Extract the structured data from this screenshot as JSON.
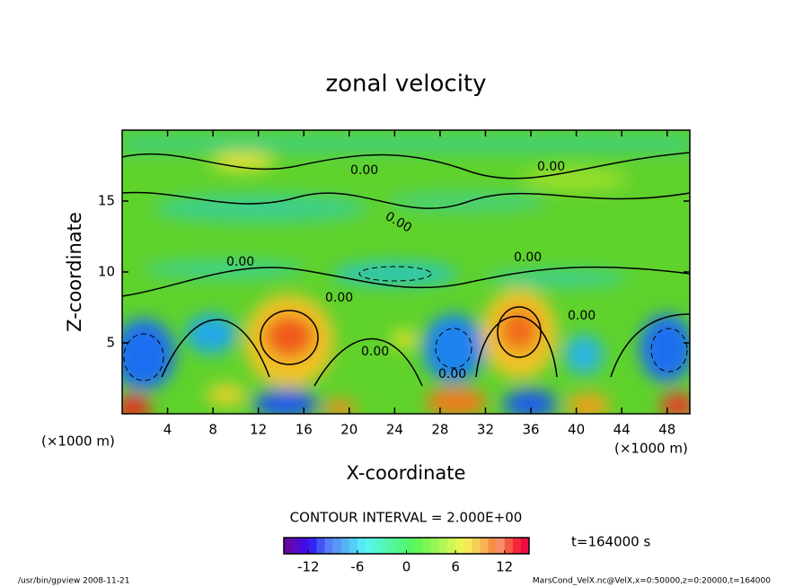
{
  "chart_data": {
    "type": "contour",
    "title": "zonal velocity",
    "xlabel": "X-coordinate",
    "ylabel": "Z-coordinate",
    "x_unit": "(×1000 m)",
    "y_unit": "(×1000 m)",
    "xlim": [
      0,
      50
    ],
    "ylim": [
      0,
      20
    ],
    "xticks": [
      4,
      8,
      12,
      16,
      20,
      24,
      28,
      32,
      36,
      40,
      44,
      48
    ],
    "yticks": [
      5,
      10,
      15
    ],
    "contour_labels": [
      "0.00",
      "0.00",
      "0.00",
      "0.00",
      "0.00",
      "0.00",
      "0.00",
      "0.00",
      "0.00"
    ],
    "contour_interval": "CONTOUR INTERVAL = 2.000E+00",
    "colorbar": {
      "lim": [
        -15,
        15
      ],
      "ticks": [
        -12,
        -6,
        0,
        6,
        12
      ]
    },
    "time_label": "t=164000 s",
    "footer_left": "/usr/bin/gpview  2008-11-21",
    "footer_right": "MarsCond_VelX.nc@VelX,x=0:50000,z=0:20000,t=164000"
  }
}
